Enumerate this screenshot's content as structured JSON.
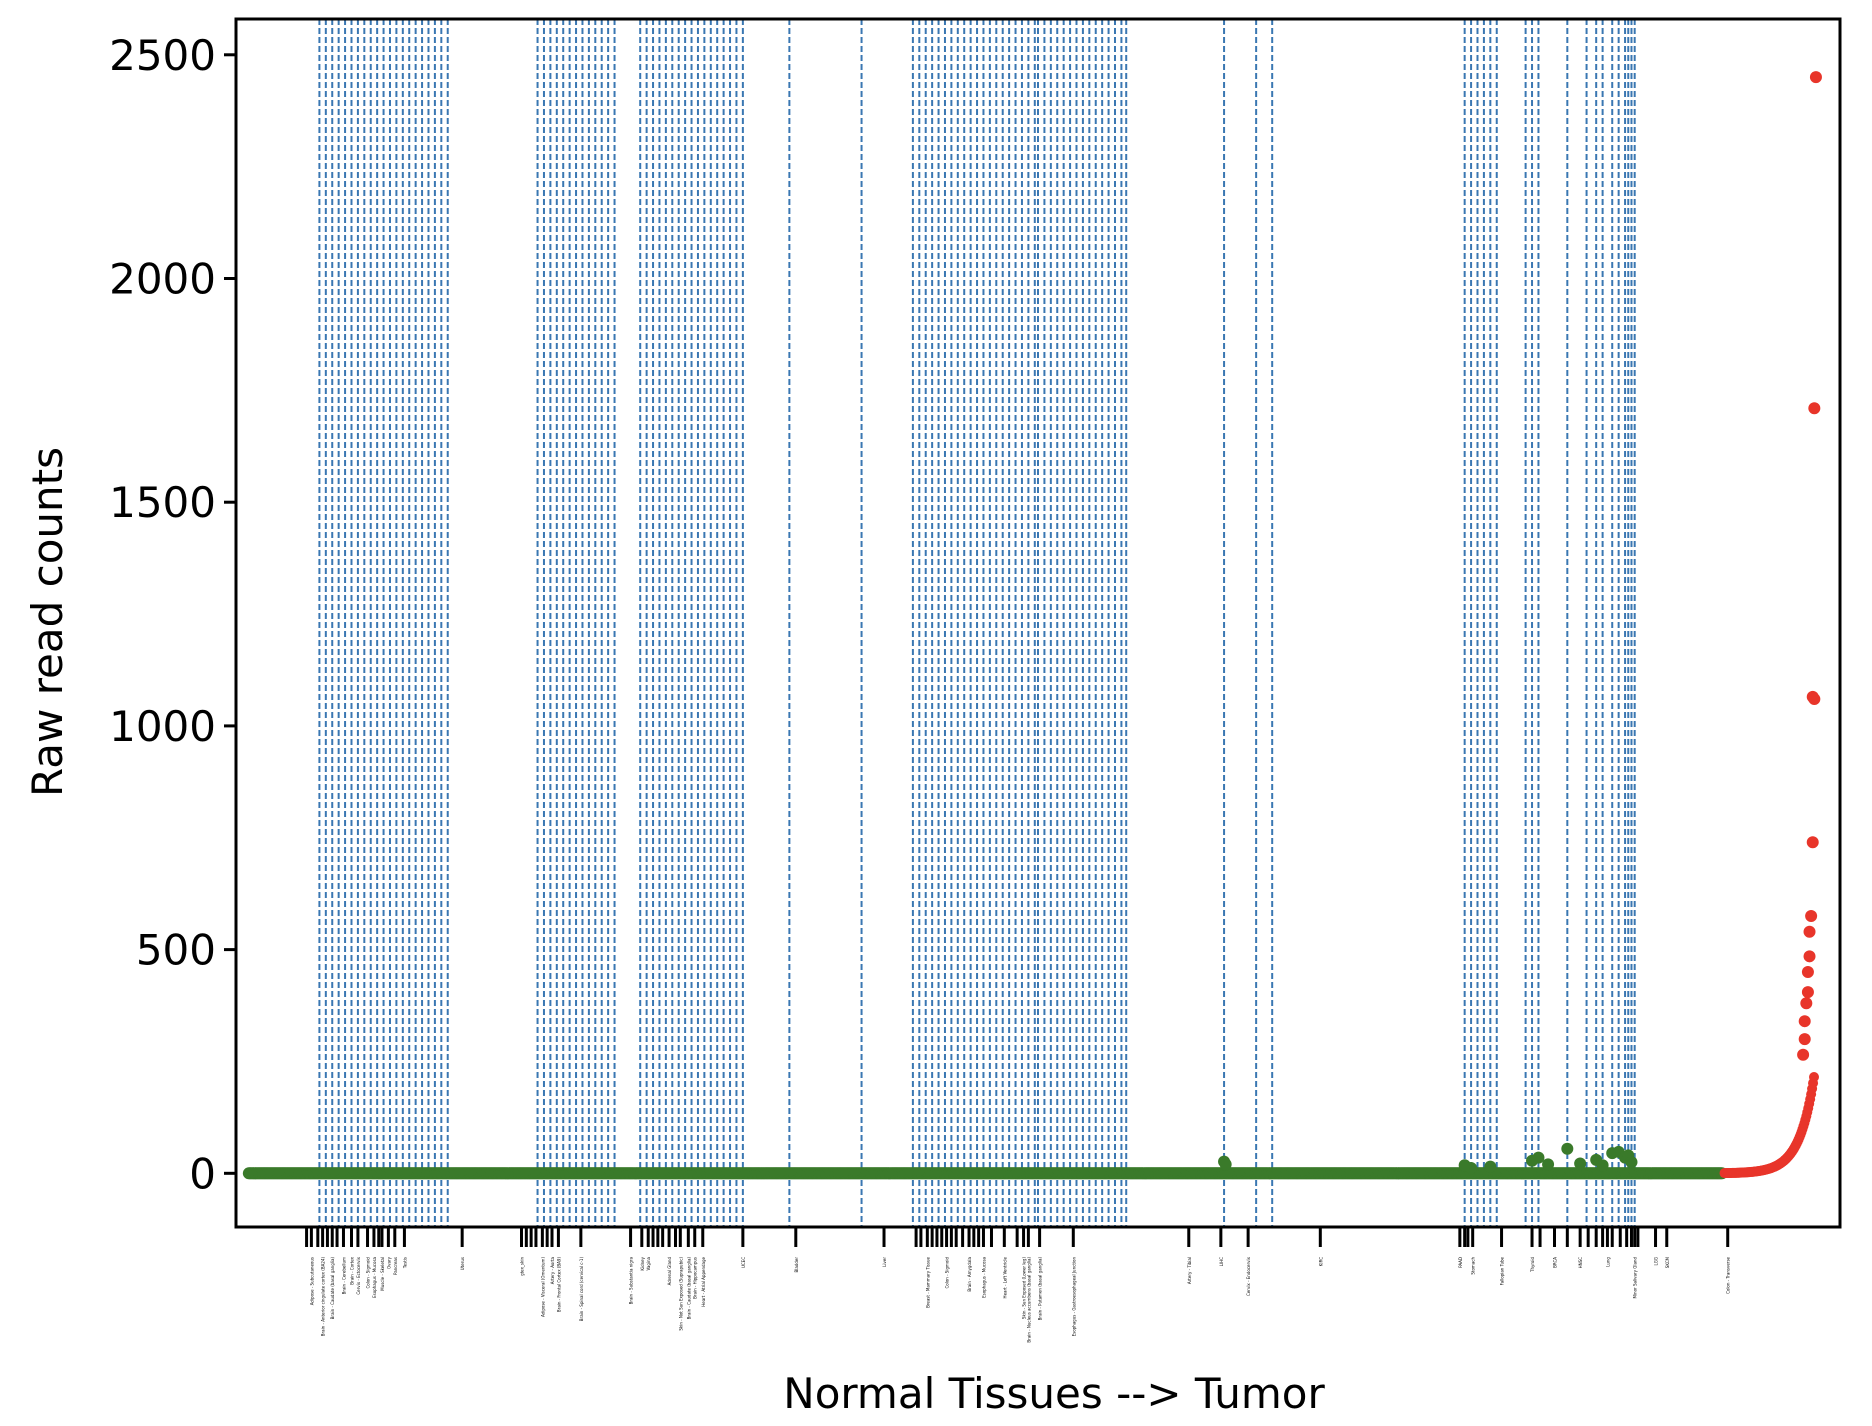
{
  "chart_data": {
    "type": "scatter",
    "title": "",
    "xlabel": "Normal Tissues --> Tumor",
    "ylabel": "Raw read counts",
    "ylim": [
      -120,
      2580
    ],
    "yticks": [
      0,
      500,
      1000,
      1500,
      2000,
      2500
    ],
    "xlim": [
      0,
      1000
    ],
    "grid": false,
    "colors": {
      "normal": "#3a7a2a",
      "tumor": "#e8352a",
      "divider": "#3a77b2"
    },
    "dividers": [
      52,
      56,
      60,
      64,
      68,
      72,
      76,
      80,
      84,
      88,
      92,
      96,
      100,
      104,
      108,
      112,
      116,
      120,
      124,
      128,
      132,
      188,
      192,
      196,
      200,
      204,
      208,
      212,
      216,
      220,
      224,
      228,
      232,
      236,
      252,
      256,
      260,
      264,
      268,
      272,
      276,
      280,
      284,
      288,
      292,
      296,
      300,
      304,
      308,
      312,
      316,
      345,
      390,
      422,
      426,
      430,
      434,
      438,
      442,
      446,
      450,
      454,
      458,
      462,
      466,
      470,
      474,
      478,
      482,
      486,
      490,
      494,
      498,
      500,
      504,
      508,
      512,
      516,
      520,
      524,
      528,
      532,
      536,
      540,
      544,
      548,
      552,
      555,
      616,
      636,
      646,
      766,
      770,
      774,
      778,
      782,
      786,
      804,
      808,
      812,
      830,
      842,
      848,
      852,
      858,
      862,
      866,
      868,
      870,
      872
    ],
    "xtick_positions": [
      44,
      47,
      51,
      54,
      57,
      60,
      63,
      67,
      72,
      76,
      82,
      86,
      89,
      91,
      95,
      99,
      105,
      141,
      178,
      181,
      184,
      187,
      191,
      194,
      197,
      201,
      215,
      246,
      253,
      257,
      260,
      263,
      266,
      270,
      274,
      277,
      282,
      286,
      291,
      316,
      349,
      404,
      424,
      427,
      431,
      434,
      437,
      440,
      443,
      446,
      449,
      453,
      457,
      460,
      463,
      466,
      471,
      479,
      487,
      491,
      494,
      501,
      522,
      594,
      614,
      631,
      676,
      763,
      766,
      768,
      771,
      789,
      808,
      813,
      822,
      830,
      838,
      843,
      848,
      852,
      855,
      858,
      863,
      867,
      870,
      872,
      874,
      885,
      892,
      930
    ],
    "xtick_labels": [
      {
        "x": 47,
        "text": "Adipose - Subcutaneous"
      },
      {
        "x": 54,
        "text": "Brain - Anterior cingulate cortex (BA24)"
      },
      {
        "x": 60,
        "text": "Brain - Caudate (basal ganglia)"
      },
      {
        "x": 67,
        "text": "Brain - Cerebellum"
      },
      {
        "x": 72,
        "text": "Brain - Cortex"
      },
      {
        "x": 76,
        "text": "Cervix - Ectocervix"
      },
      {
        "x": 82,
        "text": "Colon - Sigmoid"
      },
      {
        "x": 86,
        "text": "Esophagus - Mucosa"
      },
      {
        "x": 91,
        "text": "Muscle - Skeletal"
      },
      {
        "x": 95,
        "text": "Ovary"
      },
      {
        "x": 99,
        "text": "Pancreas"
      },
      {
        "x": 105,
        "text": "Testis"
      },
      {
        "x": 141,
        "text": "Uterus"
      },
      {
        "x": 178,
        "text": "gtex_skin"
      },
      {
        "x": 191,
        "text": "Adipose - Visceral (Omentum)"
      },
      {
        "x": 197,
        "text": "Artery - Aorta"
      },
      {
        "x": 201,
        "text": "Brain - Frontal Cortex (BA9)"
      },
      {
        "x": 215,
        "text": "Brain - Spinal cord (cervical c-1)"
      },
      {
        "x": 246,
        "text": "Brain - Substantia nigra"
      },
      {
        "x": 253,
        "text": "Kidney"
      },
      {
        "x": 257,
        "text": "Vagina"
      },
      {
        "x": 270,
        "text": "Adrenal Gland"
      },
      {
        "x": 277,
        "text": "Skin - Not Sun Exposed (Suprapubic)"
      },
      {
        "x": 282,
        "text": "Brain - Caudate (basal ganglia)"
      },
      {
        "x": 286,
        "text": "Brain - Hippocampus"
      },
      {
        "x": 291,
        "text": "Heart - Atrial Appendage"
      },
      {
        "x": 316,
        "text": "UCEC"
      },
      {
        "x": 349,
        "text": "Bladder"
      },
      {
        "x": 404,
        "text": "Liver"
      },
      {
        "x": 431,
        "text": "Breast - Mammary Tissue"
      },
      {
        "x": 443,
        "text": "Colon - Sigmoid"
      },
      {
        "x": 457,
        "text": "Brain - Amygdala"
      },
      {
        "x": 466,
        "text": "Esophagus - Mucosa"
      },
      {
        "x": 479,
        "text": "Heart - Left Ventricle"
      },
      {
        "x": 491,
        "text": "Skin - Sun Exposed (Lower leg)"
      },
      {
        "x": 494,
        "text": "Brain - Nucleus accumbens (basal ganglia)"
      },
      {
        "x": 501,
        "text": "Brain - Putamen (basal ganglia)"
      },
      {
        "x": 522,
        "text": "Esophagus - Gastroesophageal Junction"
      },
      {
        "x": 594,
        "text": "Artery - Tibial"
      },
      {
        "x": 614,
        "text": "LIHC"
      },
      {
        "x": 631,
        "text": "Cervix - Endocervix"
      },
      {
        "x": 676,
        "text": "KIRC"
      },
      {
        "x": 763,
        "text": "PAAD"
      },
      {
        "x": 771,
        "text": "Stomach"
      },
      {
        "x": 789,
        "text": "Fallopian Tube"
      },
      {
        "x": 808,
        "text": "Thyroid"
      },
      {
        "x": 822,
        "text": "BRCA"
      },
      {
        "x": 838,
        "text": "HNSC"
      },
      {
        "x": 855,
        "text": "Lung"
      },
      {
        "x": 872,
        "text": "Minor Salivary Gland"
      },
      {
        "x": 885,
        "text": "LGG"
      },
      {
        "x": 892,
        "text": "SKCM"
      },
      {
        "x": 930,
        "text": "Colon - Transverse"
      }
    ],
    "green_points": [
      {
        "x": 616,
        "y": 26
      },
      {
        "x": 617,
        "y": 20
      },
      {
        "x": 766,
        "y": 18
      },
      {
        "x": 770,
        "y": 12
      },
      {
        "x": 782,
        "y": 15
      },
      {
        "x": 808,
        "y": 28
      },
      {
        "x": 812,
        "y": 35
      },
      {
        "x": 818,
        "y": 20
      },
      {
        "x": 830,
        "y": 55
      },
      {
        "x": 838,
        "y": 22
      },
      {
        "x": 848,
        "y": 30
      },
      {
        "x": 852,
        "y": 18
      },
      {
        "x": 858,
        "y": 45
      },
      {
        "x": 862,
        "y": 48
      },
      {
        "x": 866,
        "y": 35
      },
      {
        "x": 868,
        "y": 40
      },
      {
        "x": 870,
        "y": 25
      }
    ],
    "tumor_points": [
      {
        "x": 985,
        "y": 2450
      },
      {
        "x": 984,
        "y": 1710
      },
      {
        "x": 983,
        "y": 1065
      },
      {
        "x": 984,
        "y": 1060
      },
      {
        "x": 983,
        "y": 740
      },
      {
        "x": 982,
        "y": 575
      },
      {
        "x": 981,
        "y": 540
      },
      {
        "x": 981,
        "y": 485
      },
      {
        "x": 980,
        "y": 450
      },
      {
        "x": 980,
        "y": 405
      },
      {
        "x": 979,
        "y": 380
      },
      {
        "x": 978,
        "y": 340
      },
      {
        "x": 978,
        "y": 300
      },
      {
        "x": 977,
        "y": 265
      }
    ],
    "series": [
      {
        "values": []
      },
      {
        "values": []
      }
    ]
  }
}
